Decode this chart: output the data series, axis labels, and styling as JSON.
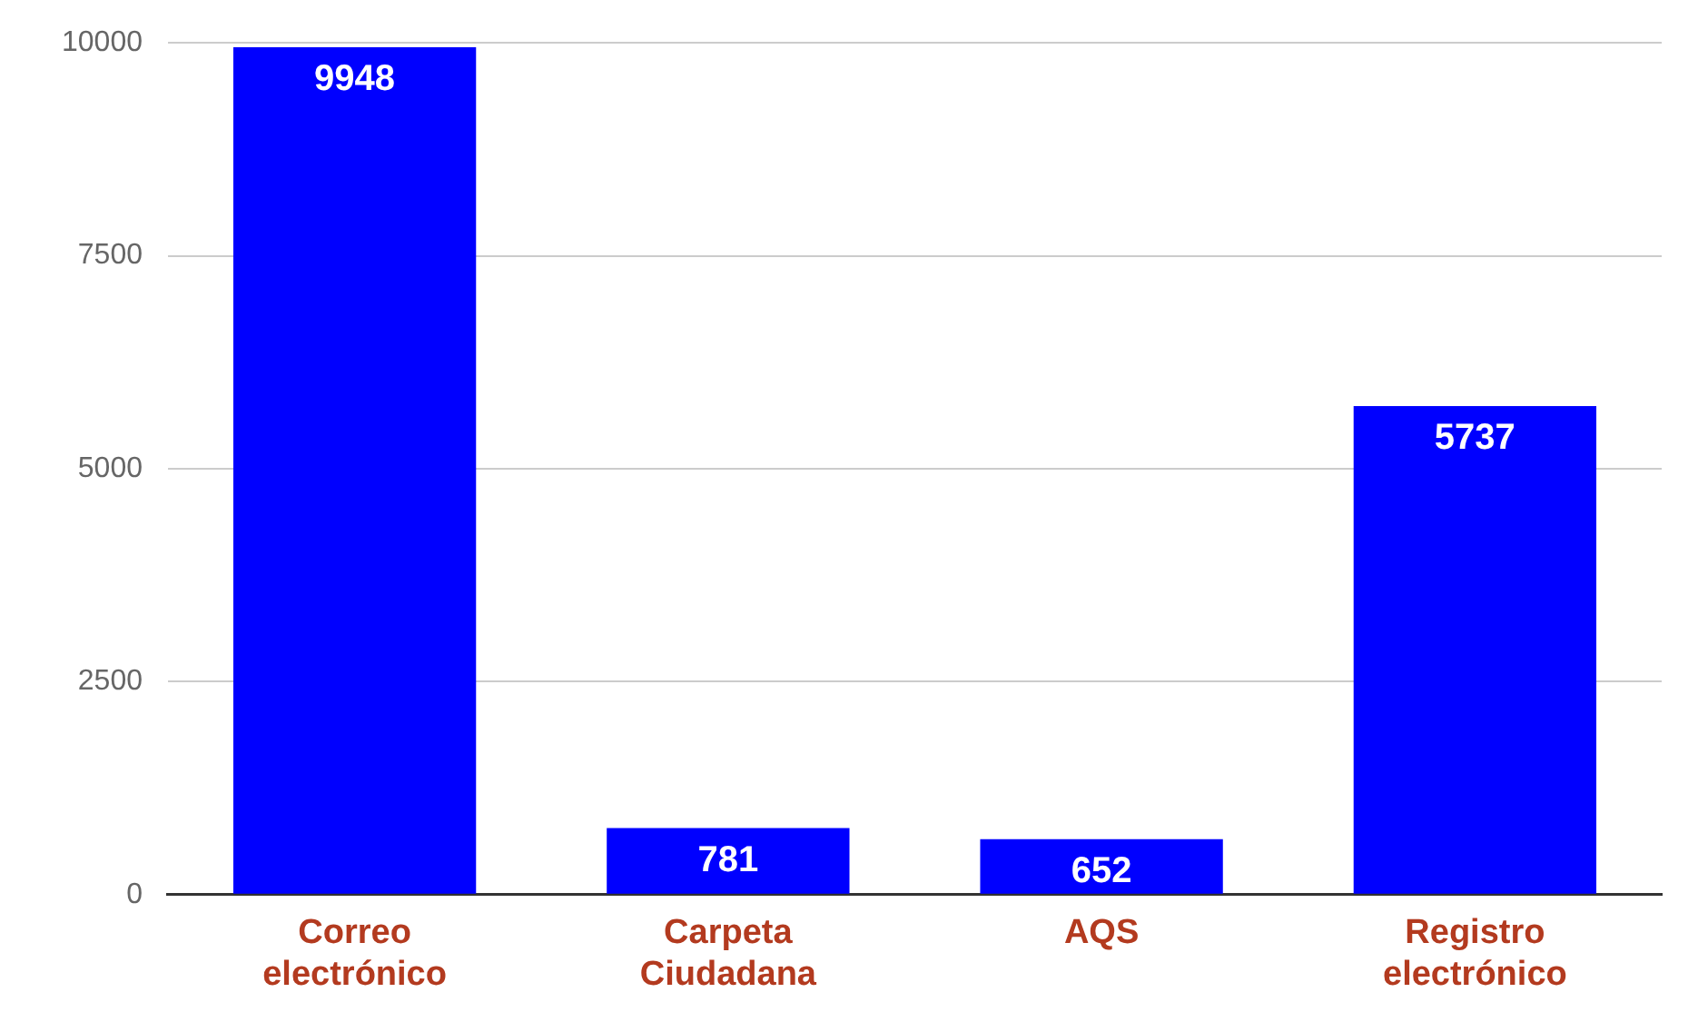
{
  "chart_data": {
    "type": "bar",
    "categories": [
      "Correo electrónico",
      "Carpeta Ciudadana",
      "AQS",
      "Registro electrónico"
    ],
    "values": [
      9948,
      781,
      652,
      5737
    ],
    "color": "#0000ff",
    "ylim": [
      0,
      10000
    ],
    "yticks": [
      0,
      2500,
      5000,
      7500,
      10000
    ],
    "grid": true,
    "data_labels": true
  }
}
